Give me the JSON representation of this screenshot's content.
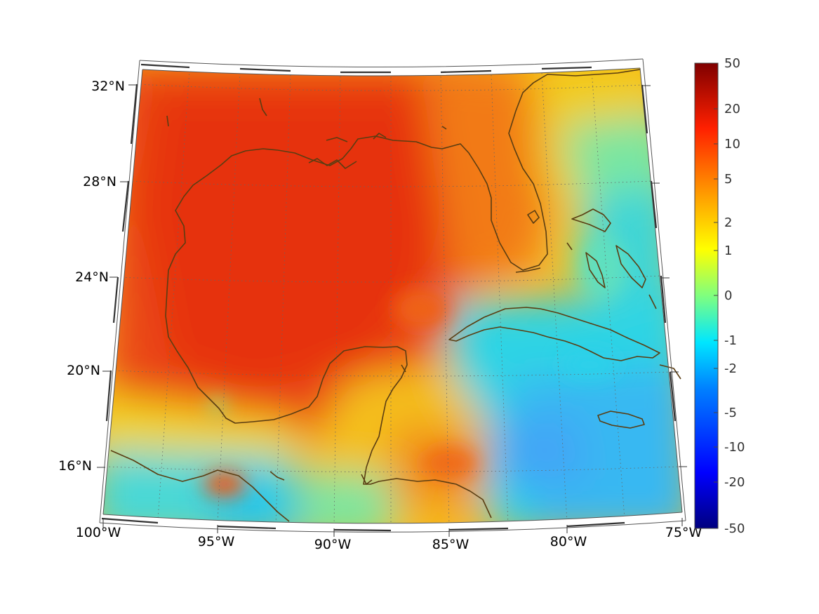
{
  "map": {
    "latitude_labels": [
      "32°N",
      "28°N",
      "24°N",
      "20°N",
      "16°N"
    ],
    "longitude_labels": [
      "100°W",
      "95°W",
      "90°W",
      "85°W",
      "80°W",
      "75°W"
    ],
    "colors": {
      "coastline": "#5a3d12",
      "gridline": "#666666",
      "warm_region": "#e83a12",
      "cool_region": "#29d6e6"
    }
  },
  "colorbar": {
    "tick_labels": [
      "50",
      "20",
      "10",
      "5",
      "2",
      "1",
      "0",
      "-1",
      "-2",
      "-5",
      "-10",
      "-20",
      "-50"
    ],
    "colormap": "jet"
  }
}
